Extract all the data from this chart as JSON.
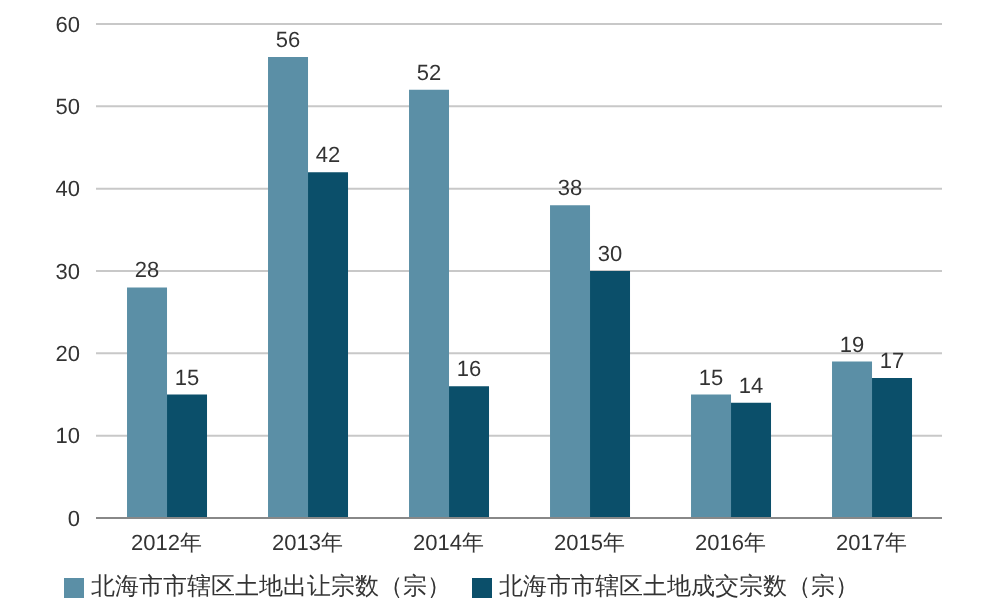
{
  "chart_data": {
    "type": "bar",
    "categories": [
      "2012年",
      "2013年",
      "2014年",
      "2015年",
      "2016年",
      "2017年"
    ],
    "series": [
      {
        "name": "北海市市辖区土地出让宗数（宗）",
        "color": "#5b8fa6",
        "values": [
          28,
          56,
          52,
          38,
          15,
          19
        ]
      },
      {
        "name": "北海市市辖区土地成交宗数（宗）",
        "color": "#0b4f6a",
        "values": [
          15,
          42,
          16,
          30,
          14,
          17
        ]
      }
    ],
    "ylim": [
      0,
      60
    ],
    "yticks": [
      0,
      10,
      20,
      30,
      40,
      50,
      60
    ],
    "grid": "y",
    "legend": "bottom",
    "data_labels": true
  }
}
